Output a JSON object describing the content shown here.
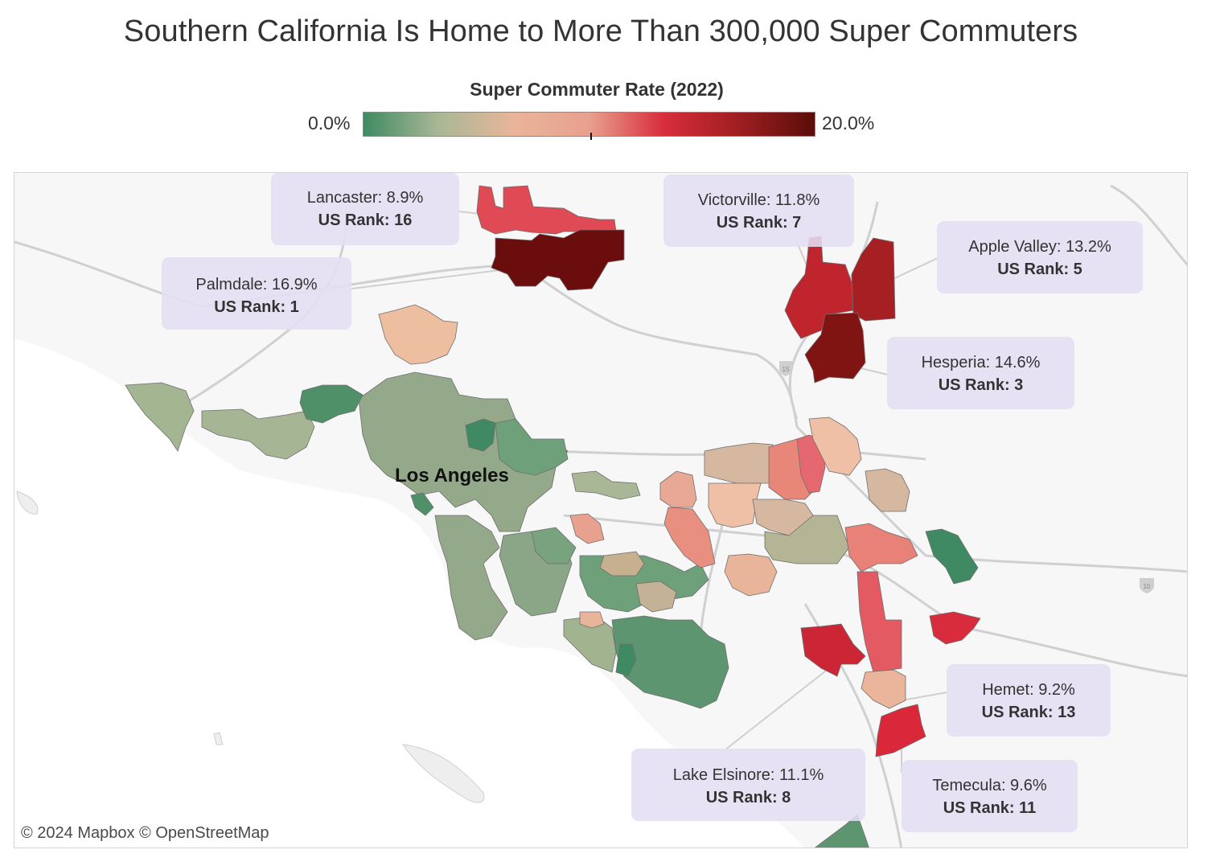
{
  "title": "Southern California Is Home to More Than 300,000 Super Commuters",
  "legend": {
    "title": "Super Commuter Rate (2022)",
    "min_label": "0.0%",
    "max_label": "20.0%",
    "color_stops": [
      "#3f8a62",
      "#a9b796",
      "#e9b59a",
      "#e8a08f",
      "#d82c3c",
      "#9e1e20",
      "#5a0d0a"
    ]
  },
  "map_label": "Los Angeles",
  "callouts": [
    {
      "id": "lancaster",
      "city": "Lancaster: 8.9%",
      "rank": "US Rank: 16",
      "rate": 8.9,
      "us_rank": 16
    },
    {
      "id": "palmdale",
      "city": "Palmdale: 16.9%",
      "rank": "US Rank: 1",
      "rate": 16.9,
      "us_rank": 1
    },
    {
      "id": "victorville",
      "city": "Victorville: 11.8%",
      "rank": "US Rank: 7",
      "rate": 11.8,
      "us_rank": 7
    },
    {
      "id": "apple-valley",
      "city": "Apple Valley: 13.2%",
      "rank": "US Rank: 5",
      "rate": 13.2,
      "us_rank": 5
    },
    {
      "id": "hesperia",
      "city": "Hesperia: 14.6%",
      "rank": "US Rank: 3",
      "rate": 14.6,
      "us_rank": 3
    },
    {
      "id": "hemet",
      "city": "Hemet: 9.2%",
      "rank": "US Rank: 13",
      "rate": 9.2,
      "us_rank": 13
    },
    {
      "id": "lake-elsinore",
      "city": "Lake Elsinore: 11.1%",
      "rank": "US Rank: 8",
      "rate": 11.1,
      "us_rank": 8
    },
    {
      "id": "temecula",
      "city": "Temecula: 9.6%",
      "rank": "US Rank: 11",
      "rate": 9.6,
      "us_rank": 11
    }
  ],
  "attribution": "© 2024 Mapbox  © OpenStreetMap",
  "road_shields": [
    "15",
    "10"
  ]
}
